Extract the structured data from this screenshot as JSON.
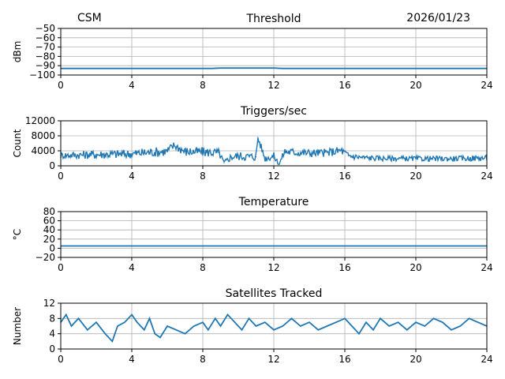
{
  "header": {
    "station": "CSM",
    "date": "2026/01/23"
  },
  "colors": {
    "line": "#1f77b4",
    "grid": "#b0b0b0",
    "axes": "#000000"
  },
  "chart_data": [
    {
      "type": "line",
      "title": "Threshold",
      "ylabel": "dBm",
      "xlim": [
        0,
        24
      ],
      "ylim": [
        -100,
        -50
      ],
      "xticks": [
        0,
        4,
        8,
        12,
        16,
        20,
        24
      ],
      "yticks": [
        -100,
        -90,
        -80,
        -70,
        -60,
        -50
      ],
      "grid": true,
      "series": [
        {
          "x": [
            0,
            3,
            6,
            8.5,
            9,
            9.5,
            11,
            12,
            12.5,
            13,
            16,
            20,
            24
          ],
          "y": [
            -93,
            -93,
            -93,
            -93,
            -92.5,
            -92.5,
            -92.5,
            -92.5,
            -93,
            -93,
            -93,
            -93,
            -93
          ]
        }
      ]
    },
    {
      "type": "line",
      "title": "Triggers/sec",
      "ylabel": "Count",
      "xlim": [
        0,
        24
      ],
      "ylim": [
        0,
        12000
      ],
      "xticks": [
        0,
        4,
        8,
        12,
        16,
        20,
        24
      ],
      "yticks": [
        0,
        4000,
        8000,
        12000
      ],
      "grid": true,
      "series": [
        {
          "x": [
            0,
            2,
            4,
            5,
            6,
            6.4,
            7,
            8,
            8.9,
            9.2,
            9.6,
            10,
            11,
            11.1,
            11.5,
            12,
            12.3,
            12.6,
            14,
            15,
            15.8,
            16.2,
            17,
            18,
            20,
            22,
            24
          ],
          "y": [
            2800,
            3000,
            3200,
            3600,
            3900,
            5500,
            3800,
            3700,
            3500,
            800,
            2400,
            2600,
            2400,
            7600,
            2000,
            2600,
            400,
            3800,
            3400,
            3500,
            4100,
            2700,
            2200,
            2000,
            1900,
            1900,
            2100
          ],
          "band": [
            900,
            1200,
            1200,
            1300,
            1300,
            1200,
            1300,
            1300,
            1200,
            600,
            1100,
            1200,
            1100,
            1000,
            1000,
            1000,
            400,
            1200,
            1100,
            1100,
            1200,
            900,
            800,
            700,
            700,
            700,
            800
          ]
        }
      ]
    },
    {
      "type": "line",
      "title": "Temperature",
      "ylabel": "°C",
      "xlim": [
        0,
        24
      ],
      "ylim": [
        -20,
        80
      ],
      "xticks": [
        0,
        4,
        8,
        12,
        16,
        20,
        24
      ],
      "yticks": [
        -20,
        0,
        20,
        40,
        60,
        80
      ],
      "grid": true,
      "series": [
        {
          "x": [
            0,
            24
          ],
          "y": [
            5,
            5
          ]
        }
      ]
    },
    {
      "type": "line",
      "title": "Satellites Tracked",
      "ylabel": "Number",
      "xlim": [
        0,
        24
      ],
      "ylim": [
        0,
        12
      ],
      "xticks": [
        0,
        4,
        8,
        12,
        16,
        20,
        24
      ],
      "yticks": [
        0,
        4,
        8,
        12
      ],
      "grid": true,
      "series": [
        {
          "x": [
            0,
            0.3,
            0.6,
            1,
            1.5,
            2,
            2.5,
            2.9,
            3.2,
            3.6,
            4,
            4.3,
            4.7,
            5,
            5.3,
            5.6,
            6,
            6.5,
            7,
            7.5,
            8,
            8.3,
            8.7,
            9,
            9.4,
            9.8,
            10.2,
            10.6,
            11,
            11.5,
            12,
            12.5,
            13,
            13.5,
            14,
            14.5,
            15,
            15.5,
            16,
            16.4,
            16.8,
            17.2,
            17.6,
            18,
            18.5,
            19,
            19.5,
            20,
            20.5,
            21,
            21.5,
            22,
            22.5,
            23,
            23.5,
            24
          ],
          "y": [
            7,
            9,
            6,
            8,
            5,
            7,
            4,
            2,
            6,
            7,
            9,
            7,
            5,
            8,
            4,
            3,
            6,
            5,
            4,
            6,
            7,
            5,
            8,
            6,
            9,
            7,
            5,
            8,
            6,
            7,
            5,
            6,
            8,
            6,
            7,
            5,
            6,
            7,
            8,
            6,
            4,
            7,
            5,
            8,
            6,
            7,
            5,
            7,
            6,
            8,
            7,
            5,
            6,
            8,
            7,
            6
          ]
        }
      ]
    }
  ]
}
